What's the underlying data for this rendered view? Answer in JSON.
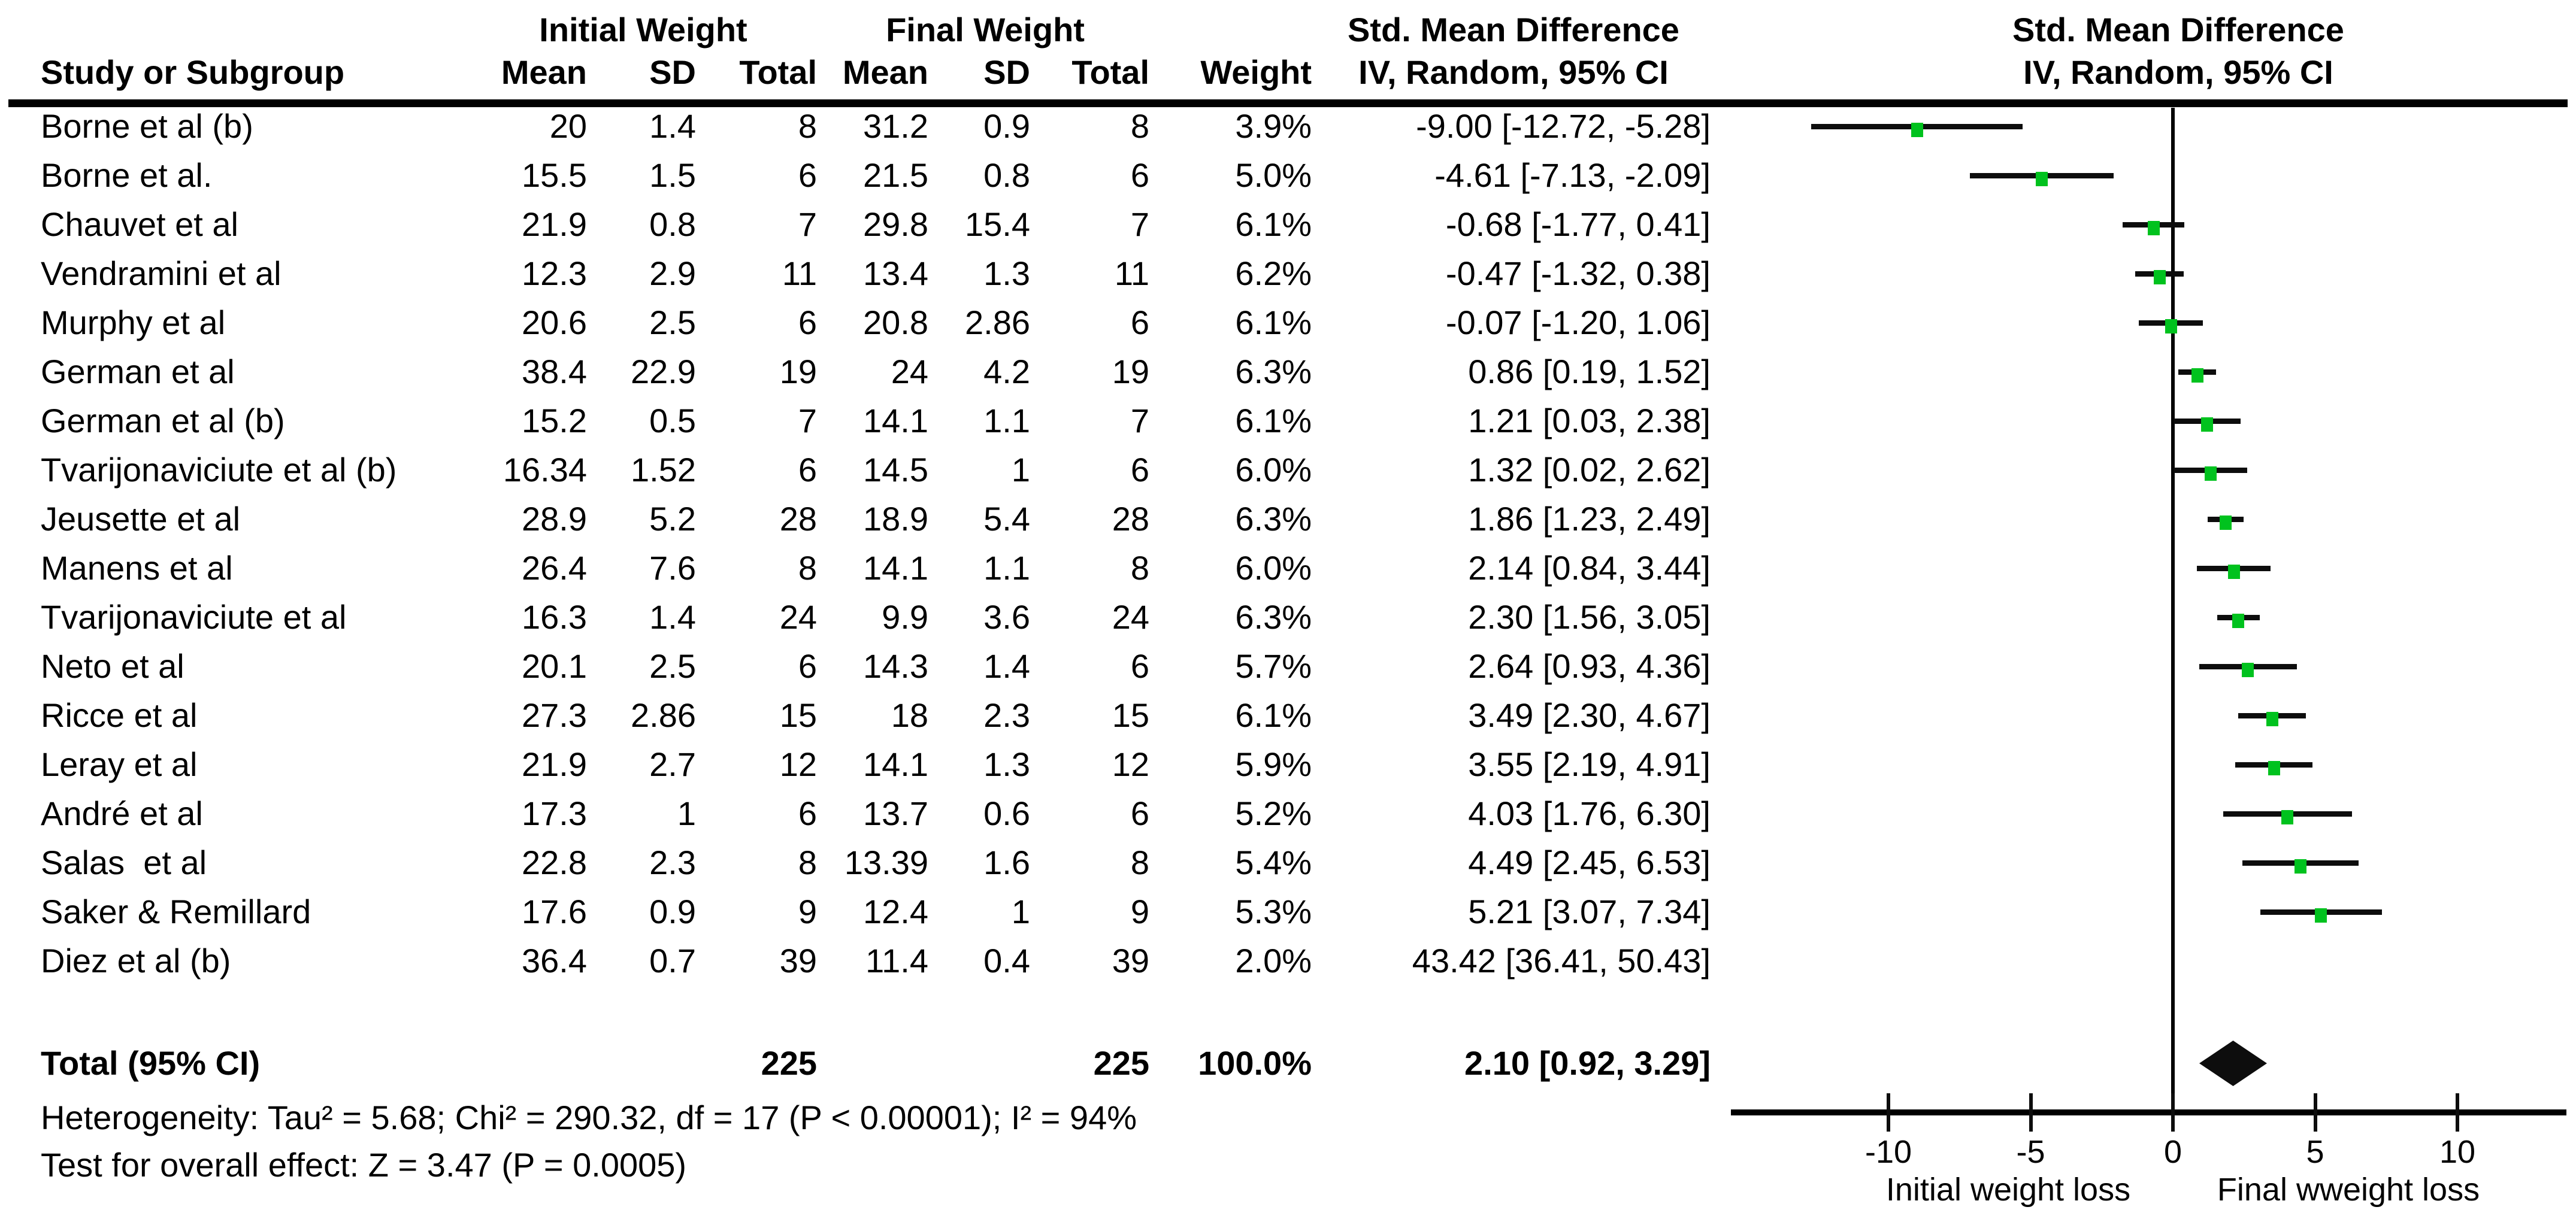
{
  "header": {
    "group_initial": "Initial Weight",
    "group_final": "Final Weight",
    "smd_title_left": "Std. Mean Difference",
    "smd_title_right": "Std. Mean Difference",
    "col_study": "Study or Subgroup",
    "col_mean_initial": "Mean",
    "col_sd_initial": "SD",
    "col_total_initial": "Total",
    "col_mean_final": "Mean",
    "col_sd_final": "SD",
    "col_total_final": "Total",
    "col_weight": "Weight",
    "ci_method_left": "IV, Random, 95% CI",
    "ci_method_right": "IV, Random, 95% CI"
  },
  "chart_data": {
    "type": "forest",
    "effect_measure": "Std. Mean Difference",
    "model": "IV, Random, 95% CI",
    "marker_color": "#00c21e",
    "diamond_color": "#0d0d0d",
    "studies": [
      {
        "name": "Borne et al (b)",
        "mean1": "20",
        "sd1": "1.4",
        "total1": "8",
        "mean2": "31.2",
        "sd2": "0.9",
        "total2": "8",
        "weight": "3.9%",
        "ci": "-9.00 [-12.72, -5.28]",
        "smd": -9.0,
        "low": -12.72,
        "high": -5.28
      },
      {
        "name": "Borne et al.",
        "mean1": "15.5",
        "sd1": "1.5",
        "total1": "6",
        "mean2": "21.5",
        "sd2": "0.8",
        "total2": "6",
        "weight": "5.0%",
        "ci": "-4.61 [-7.13, -2.09]",
        "smd": -4.61,
        "low": -7.13,
        "high": -2.09
      },
      {
        "name": "Chauvet et al",
        "mean1": "21.9",
        "sd1": "0.8",
        "total1": "7",
        "mean2": "29.8",
        "sd2": "15.4",
        "total2": "7",
        "weight": "6.1%",
        "ci": "-0.68 [-1.77, 0.41]",
        "smd": -0.68,
        "low": -1.77,
        "high": 0.41
      },
      {
        "name": "Vendramini et al",
        "mean1": "12.3",
        "sd1": "2.9",
        "total1": "11",
        "mean2": "13.4",
        "sd2": "1.3",
        "total2": "11",
        "weight": "6.2%",
        "ci": "-0.47 [-1.32, 0.38]",
        "smd": -0.47,
        "low": -1.32,
        "high": 0.38
      },
      {
        "name": "Murphy et al",
        "mean1": "20.6",
        "sd1": "2.5",
        "total1": "6",
        "mean2": "20.8",
        "sd2": "2.86",
        "total2": "6",
        "weight": "6.1%",
        "ci": "-0.07 [-1.20, 1.06]",
        "smd": -0.07,
        "low": -1.2,
        "high": 1.06
      },
      {
        "name": "German et al",
        "mean1": "38.4",
        "sd1": "22.9",
        "total1": "19",
        "mean2": "24",
        "sd2": "4.2",
        "total2": "19",
        "weight": "6.3%",
        "ci": "0.86 [0.19, 1.52]",
        "smd": 0.86,
        "low": 0.19,
        "high": 1.52
      },
      {
        "name": "German et al (b)",
        "mean1": "15.2",
        "sd1": "0.5",
        "total1": "7",
        "mean2": "14.1",
        "sd2": "1.1",
        "total2": "7",
        "weight": "6.1%",
        "ci": "1.21 [0.03, 2.38]",
        "smd": 1.21,
        "low": 0.03,
        "high": 2.38
      },
      {
        "name": "Tvarijonaviciute et al (b)",
        "mean1": "16.34",
        "sd1": "1.52",
        "total1": "6",
        "mean2": "14.5",
        "sd2": "1",
        "total2": "6",
        "weight": "6.0%",
        "ci": "1.32 [0.02, 2.62]",
        "smd": 1.32,
        "low": 0.02,
        "high": 2.62
      },
      {
        "name": "Jeusette et al",
        "mean1": "28.9",
        "sd1": "5.2",
        "total1": "28",
        "mean2": "18.9",
        "sd2": "5.4",
        "total2": "28",
        "weight": "6.3%",
        "ci": "1.86 [1.23, 2.49]",
        "smd": 1.86,
        "low": 1.23,
        "high": 2.49
      },
      {
        "name": "Manens et al",
        "mean1": "26.4",
        "sd1": "7.6",
        "total1": "8",
        "mean2": "14.1",
        "sd2": "1.1",
        "total2": "8",
        "weight": "6.0%",
        "ci": "2.14 [0.84, 3.44]",
        "smd": 2.14,
        "low": 0.84,
        "high": 3.44
      },
      {
        "name": "Tvarijonaviciute et al",
        "mean1": "16.3",
        "sd1": "1.4",
        "total1": "24",
        "mean2": "9.9",
        "sd2": "3.6",
        "total2": "24",
        "weight": "6.3%",
        "ci": "2.30 [1.56, 3.05]",
        "smd": 2.3,
        "low": 1.56,
        "high": 3.05
      },
      {
        "name": "Neto et al",
        "mean1": "20.1",
        "sd1": "2.5",
        "total1": "6",
        "mean2": "14.3",
        "sd2": "1.4",
        "total2": "6",
        "weight": "5.7%",
        "ci": "2.64 [0.93, 4.36]",
        "smd": 2.64,
        "low": 0.93,
        "high": 4.36
      },
      {
        "name": "Ricce et al",
        "mean1": "27.3",
        "sd1": "2.86",
        "total1": "15",
        "mean2": "18",
        "sd2": "2.3",
        "total2": "15",
        "weight": "6.1%",
        "ci": "3.49 [2.30, 4.67]",
        "smd": 3.49,
        "low": 2.3,
        "high": 4.67
      },
      {
        "name": "Leray et al",
        "mean1": "21.9",
        "sd1": "2.7",
        "total1": "12",
        "mean2": "14.1",
        "sd2": "1.3",
        "total2": "12",
        "weight": "5.9%",
        "ci": "3.55 [2.19, 4.91]",
        "smd": 3.55,
        "low": 2.19,
        "high": 4.91
      },
      {
        "name": "André et al",
        "mean1": "17.3",
        "sd1": "1",
        "total1": "6",
        "mean2": "13.7",
        "sd2": "0.6",
        "total2": "6",
        "weight": "5.2%",
        "ci": "4.03 [1.76, 6.30]",
        "smd": 4.03,
        "low": 1.76,
        "high": 6.3
      },
      {
        "name": "Salas  et al",
        "mean1": "22.8",
        "sd1": "2.3",
        "total1": "8",
        "mean2": "13.39",
        "sd2": "1.6",
        "total2": "8",
        "weight": "5.4%",
        "ci": "4.49 [2.45, 6.53]",
        "smd": 4.49,
        "low": 2.45,
        "high": 6.53
      },
      {
        "name": "Saker & Remillard",
        "mean1": "17.6",
        "sd1": "0.9",
        "total1": "9",
        "mean2": "12.4",
        "sd2": "1",
        "total2": "9",
        "weight": "5.3%",
        "ci": "5.21 [3.07, 7.34]",
        "smd": 5.21,
        "low": 3.07,
        "high": 7.34
      },
      {
        "name": "Diez et al (b)",
        "mean1": "36.4",
        "sd1": "0.7",
        "total1": "39",
        "mean2": "11.4",
        "sd2": "0.4",
        "total2": "39",
        "weight": "2.0%",
        "ci": "43.42 [36.41, 50.43]",
        "smd": 43.42,
        "low": 36.41,
        "high": 50.43
      }
    ],
    "total": {
      "label": "Total (95% CI)",
      "total1": "225",
      "total2": "225",
      "weight": "100.0%",
      "ci": "2.10 [0.92, 3.29]",
      "smd": 2.1,
      "low": 0.92,
      "high": 3.29
    },
    "heterogeneity": "Heterogeneity: Tau² = 5.68; Chi² = 290.32, df = 17 (P < 0.00001); I² = 94%",
    "overall_effect": "Test for overall effect: Z = 3.47 (P = 0.0005)",
    "axis": {
      "ticks": [
        "-10",
        "-5",
        "0",
        "5",
        "10"
      ],
      "tick_values": [
        -10,
        -5,
        0,
        5,
        10
      ],
      "xmin": -15.5,
      "xmax": 13.8,
      "label_left": "Initial weight loss",
      "label_right": "Final wweight loss"
    }
  }
}
